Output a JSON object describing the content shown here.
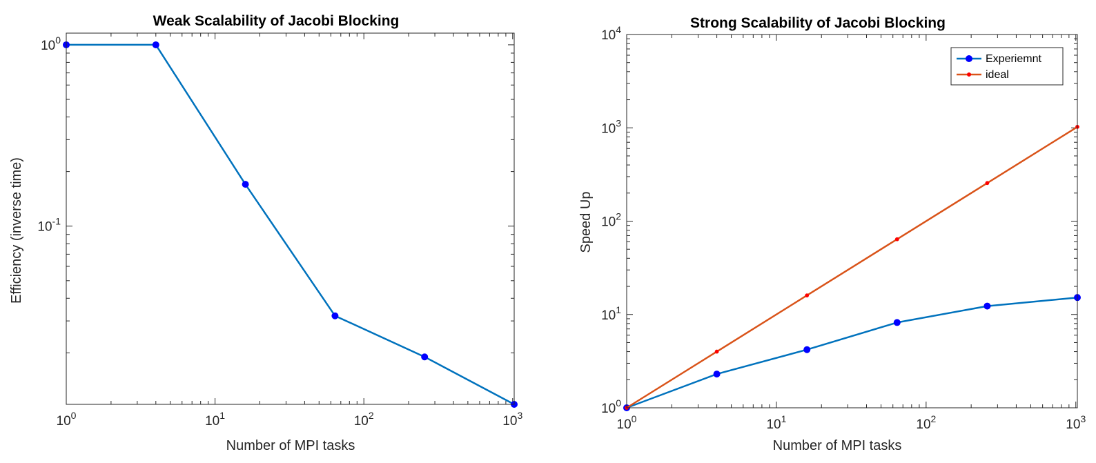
{
  "chart_data": [
    {
      "type": "line",
      "title": "Weak Scalability of Jacobi Blocking",
      "xlabel": "Number of MPI tasks",
      "ylabel": "Efficiency (inverse time)",
      "xscale": "log",
      "yscale": "log",
      "xlim": [
        1,
        1024
      ],
      "ylim": [
        0.0104,
        1.16
      ],
      "xtick_labels": [
        {
          "value": 1,
          "base": "10",
          "exp": "0"
        },
        {
          "value": 10,
          "base": "10",
          "exp": "1"
        },
        {
          "value": 100,
          "base": "10",
          "exp": "2"
        },
        {
          "value": 1000,
          "base": "10",
          "exp": "3"
        }
      ],
      "ytick_labels": [
        {
          "value": 1,
          "base": "10",
          "exp": "0"
        },
        {
          "value": 0.1,
          "base": "10",
          "exp": "-1"
        }
      ],
      "grid": false,
      "series": [
        {
          "x": [
            1,
            4,
            16,
            64,
            256,
            1024
          ],
          "y": [
            1.0,
            1.0,
            0.17,
            0.032,
            0.019,
            0.0104
          ],
          "color": "#0072BD",
          "marker_color": "#0000FF",
          "marker": "circle"
        }
      ]
    },
    {
      "type": "line",
      "title": "Strong Scalability of Jacobi Blocking",
      "xlabel": "Number of MPI tasks",
      "ylabel": "Speed Up",
      "xscale": "log",
      "yscale": "log",
      "xlim": [
        1,
        1024
      ],
      "ylim": [
        1,
        10000
      ],
      "xtick_labels": [
        {
          "value": 1,
          "base": "10",
          "exp": "0"
        },
        {
          "value": 10,
          "base": "10",
          "exp": "1"
        },
        {
          "value": 100,
          "base": "10",
          "exp": "2"
        },
        {
          "value": 1000,
          "base": "10",
          "exp": "3"
        }
      ],
      "ytick_labels": [
        {
          "value": 1,
          "base": "10",
          "exp": "0"
        },
        {
          "value": 10,
          "base": "10",
          "exp": "1"
        },
        {
          "value": 100,
          "base": "10",
          "exp": "2"
        },
        {
          "value": 1000,
          "base": "10",
          "exp": "3"
        },
        {
          "value": 10000,
          "base": "10",
          "exp": "4"
        }
      ],
      "grid": false,
      "legend_position": "top-right",
      "series": [
        {
          "name": "Experiemnt",
          "x": [
            1,
            4,
            16,
            64,
            256,
            1024
          ],
          "y": [
            1,
            2.3,
            4.2,
            8.2,
            12.3,
            15.2
          ],
          "color": "#0072BD",
          "marker_color": "#0000FF",
          "marker": "circle"
        },
        {
          "name": "ideal",
          "x": [
            1,
            4,
            16,
            64,
            256,
            1024
          ],
          "y": [
            1,
            4,
            16,
            64,
            256,
            1024
          ],
          "color": "#D95319",
          "marker_color": "#FF0000",
          "marker": "dot"
        }
      ]
    }
  ]
}
